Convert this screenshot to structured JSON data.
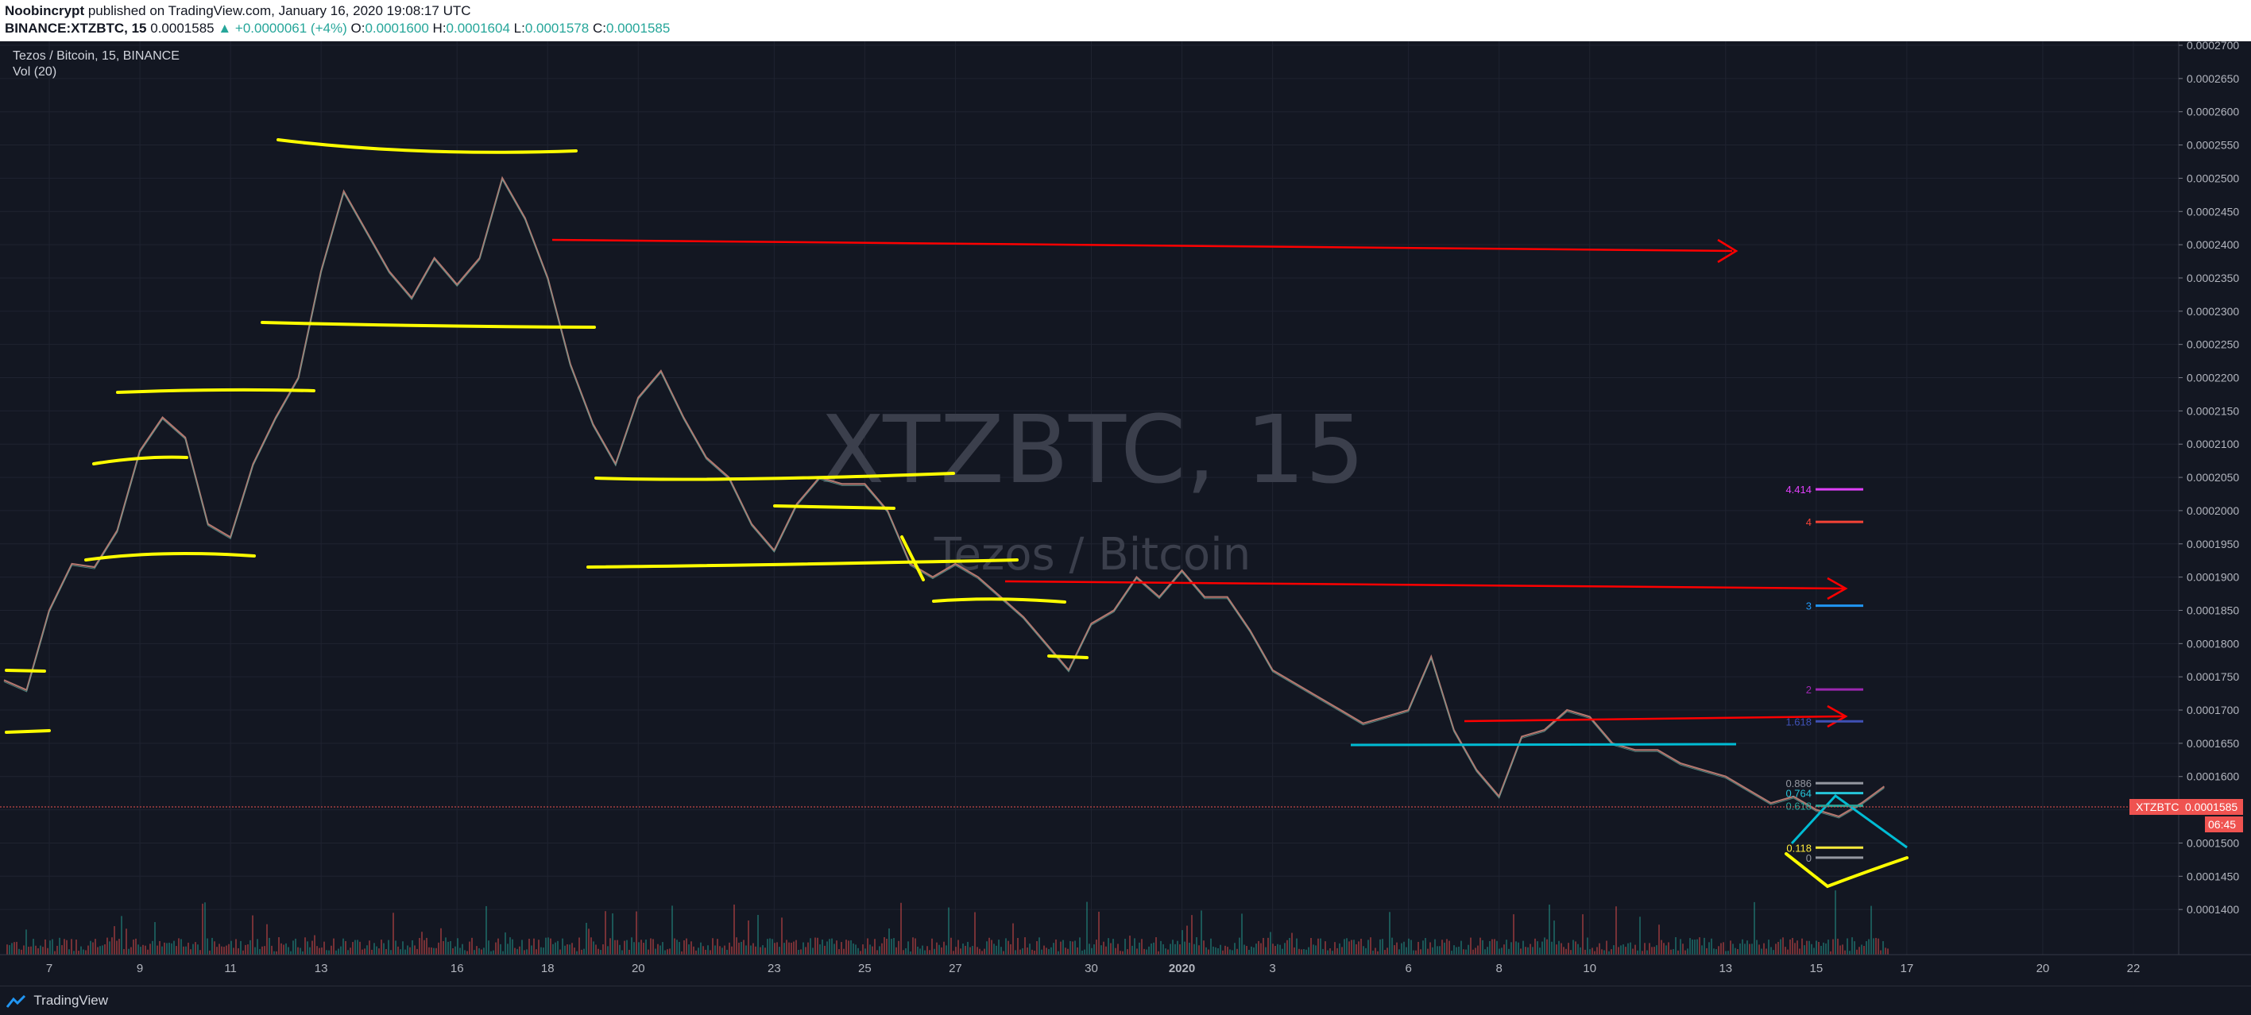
{
  "header": {
    "author": "Noobincrypt",
    "published_text": "published on TradingView.com, January 16, 2020 19:08:17 UTC",
    "symbol_line": "BINANCE:XTZBTC, 15",
    "last": "0.0001585",
    "change": "▲ +0.0000061 (+4%)",
    "o_label": "O:",
    "o_value": "0.0001600",
    "h_label": "H:",
    "h_value": "0.0001604",
    "l_label": "L:",
    "l_value": "0.0001578",
    "c_label": "C:",
    "c_value": "0.0001585"
  },
  "legend": {
    "title": "Tezos / Bitcoin, 15, BINANCE",
    "volume": "Vol (20)"
  },
  "watermark": {
    "symbol": "XTZBTC, 15",
    "name": "Tezos / Bitcoin"
  },
  "price_badge": {
    "symbol": "XTZBTC",
    "price": "0.0001585",
    "countdown": "06:45"
  },
  "footer": {
    "brand": "TradingView"
  },
  "colors": {
    "background": "#131722",
    "up": "#26a69a",
    "down": "#ef5350",
    "support_lines": "#ffff00",
    "arrows": "#ff0000",
    "cyan_lines": "#00bcd4"
  },
  "chart_data": {
    "type": "line",
    "symbol": "XTZBTC",
    "interval": "15",
    "ylim": [
      0.000135,
      0.00027
    ],
    "y_ticks": [
      "0.0002700",
      "0.0002650",
      "0.0002600",
      "0.0002550",
      "0.0002500",
      "0.0002450",
      "0.0002400",
      "0.0002350",
      "0.0002300",
      "0.0002250",
      "0.0002200",
      "0.0002150",
      "0.0002100",
      "0.0002050",
      "0.0002000",
      "0.0001950",
      "0.0001900",
      "0.0001850",
      "0.0001800",
      "0.0001750",
      "0.0001700",
      "0.0001650",
      "0.0001600",
      "0.0001550",
      "0.0001500",
      "0.0001450",
      "0.0001400"
    ],
    "x_ticks": [
      "7",
      "9",
      "11",
      "13",
      "16",
      "18",
      "20",
      "23",
      "25",
      "27",
      "30",
      "2020",
      "3",
      "6",
      "8",
      "10",
      "13",
      "15",
      "17",
      "20",
      "22"
    ],
    "x_tick_days": [
      7,
      9,
      11,
      13,
      16,
      18,
      20,
      23,
      25,
      27,
      30,
      32,
      34,
      37,
      39,
      41,
      44,
      46,
      48,
      51,
      53
    ],
    "x_range_days": [
      6,
      54
    ],
    "price_path": {
      "day": [
        6.0,
        6.5,
        7.0,
        7.5,
        8.0,
        8.5,
        9.0,
        9.5,
        10.0,
        10.5,
        11.0,
        11.5,
        12.0,
        12.5,
        13.0,
        13.5,
        14.0,
        14.5,
        15.0,
        15.5,
        16.0,
        16.5,
        17.0,
        17.5,
        18.0,
        18.5,
        19.0,
        19.5,
        20.0,
        20.5,
        21.0,
        21.5,
        22.0,
        22.5,
        23.0,
        23.5,
        24.0,
        24.5,
        25.0,
        25.5,
        26.0,
        26.5,
        27.0,
        27.5,
        28.0,
        28.5,
        29.0,
        29.5,
        30.0,
        30.5,
        31.0,
        31.5,
        32.0,
        32.5,
        33.0,
        33.5,
        34.0,
        34.5,
        35.0,
        35.5,
        36.0,
        36.5,
        37.0,
        37.5,
        38.0,
        38.5,
        39.0,
        39.5,
        40.0,
        40.5,
        41.0,
        41.5,
        42.0,
        42.5,
        43.0,
        43.5,
        44.0,
        44.5,
        45.0,
        45.5,
        46.0,
        46.5,
        47.0,
        47.5
      ],
      "price": [
        0.0001745,
        0.000173,
        0.000185,
        0.000192,
        0.0001915,
        0.000197,
        0.000209,
        0.000214,
        0.000211,
        0.000198,
        0.000196,
        0.000207,
        0.000214,
        0.00022,
        0.000236,
        0.000248,
        0.000242,
        0.000236,
        0.000232,
        0.000238,
        0.000234,
        0.000238,
        0.00025,
        0.000244,
        0.000235,
        0.000222,
        0.000213,
        0.000207,
        0.000217,
        0.000221,
        0.000214,
        0.000208,
        0.000205,
        0.000198,
        0.000194,
        0.000201,
        0.000205,
        0.000204,
        0.000204,
        0.0002,
        0.000192,
        0.00019,
        0.000192,
        0.00019,
        0.000187,
        0.000184,
        0.00018,
        0.000176,
        0.000183,
        0.000185,
        0.00019,
        0.000187,
        0.000191,
        0.000187,
        0.000187,
        0.000182,
        0.000176,
        0.000174,
        0.000172,
        0.00017,
        0.000168,
        0.000169,
        0.00017,
        0.000178,
        0.000167,
        0.000161,
        0.000157,
        0.000166,
        0.000167,
        0.00017,
        0.000169,
        0.000165,
        0.000164,
        0.000164,
        0.000162,
        0.000161,
        0.00016,
        0.000158,
        0.000156,
        0.000157,
        0.000155,
        0.000154,
        0.000156,
        0.0001585
      ]
    },
    "fib_labels": [
      {
        "label": "4.414",
        "price": 0.0002032,
        "color": "#e040fb"
      },
      {
        "label": "4",
        "price": 0.0001983,
        "color": "#f44336"
      },
      {
        "label": "3",
        "price": 0.0001857,
        "color": "#2196f3"
      },
      {
        "label": "2",
        "price": 0.0001731,
        "color": "#9c27b0"
      },
      {
        "label": "1.618",
        "price": 0.0001683,
        "color": "#3f51b5"
      },
      {
        "label": "0.886",
        "price": 0.000159,
        "color": "#9598a1"
      },
      {
        "label": "0.764",
        "price": 0.0001575,
        "color": "#26c6da"
      },
      {
        "label": "0.618",
        "price": 0.0001556,
        "color": "#26a69a"
      },
      {
        "label": "0.118",
        "price": 0.0001493,
        "color": "#ffeb3b"
      },
      {
        "label": "0",
        "price": 0.0001478,
        "color": "#9598a1"
      }
    ]
  }
}
